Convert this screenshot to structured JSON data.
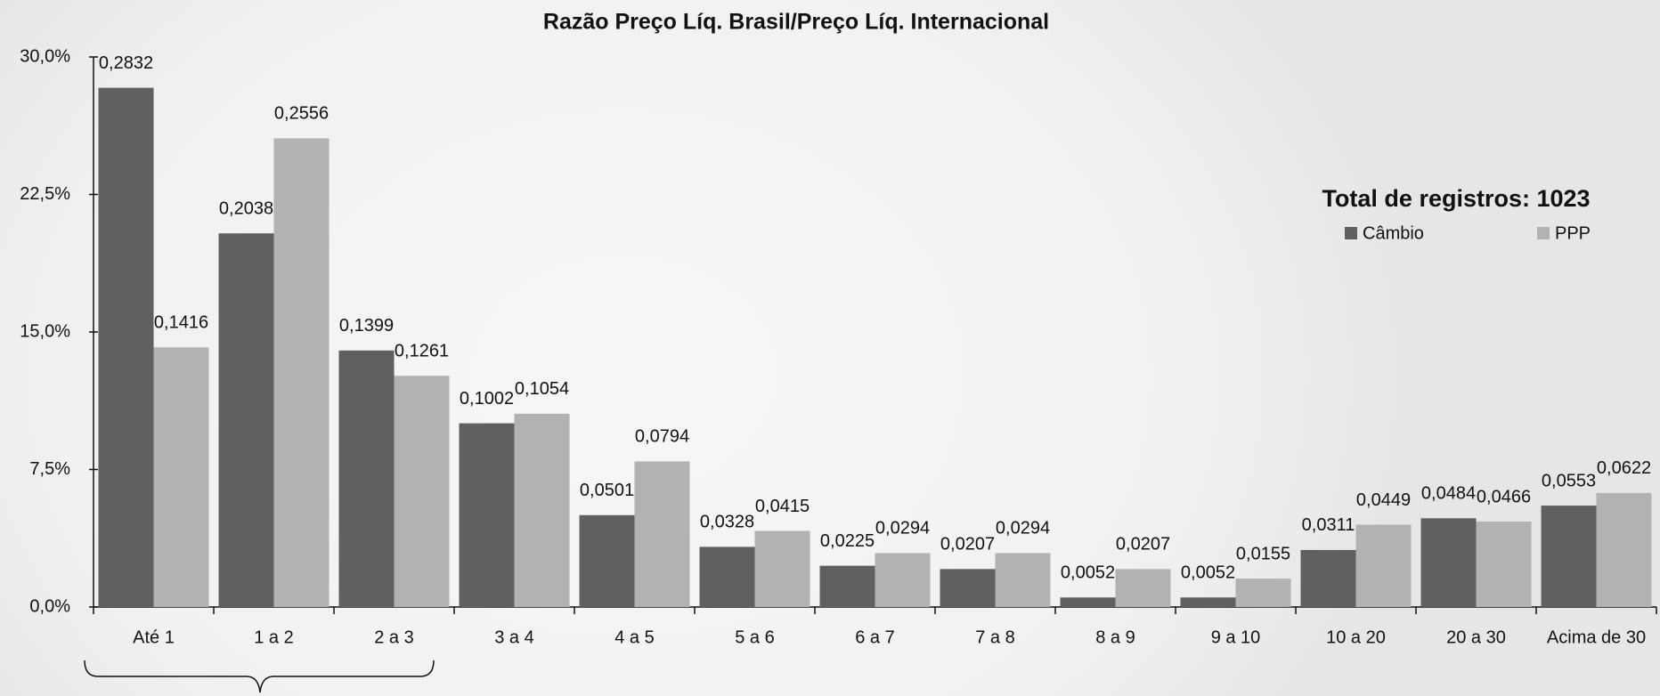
{
  "chart_data": {
    "type": "bar",
    "title": "Razão Preço Líq. Brasil/Preço Líq. Internacional",
    "annotation": "Total de registros: 1023",
    "categories": [
      "Até 1",
      "1 a 2",
      "2 a 3",
      "3 a 4",
      "4 a 5",
      "5 a 6",
      "6 a 7",
      "7 a 8",
      "8 a 9",
      "9 a 10",
      "10 a 20",
      "20 a 30",
      "Acima de 30"
    ],
    "series": [
      {
        "name": "Câmbio",
        "color": "#606060",
        "values": [
          28.32,
          20.38,
          13.99,
          10.02,
          5.01,
          3.28,
          2.25,
          2.07,
          0.52,
          0.52,
          3.11,
          4.84,
          5.53
        ],
        "value_labels": [
          "0,2832",
          "0,2038",
          "0,1399",
          "0,1002",
          "0,0501",
          "0,0328",
          "0,0225",
          "0,0207",
          "0,0052",
          "0,0052",
          "0,0311",
          "0,0484",
          "0,0553"
        ]
      },
      {
        "name": "PPP",
        "color": "#b2b2b2",
        "values": [
          14.16,
          25.56,
          12.61,
          10.54,
          7.94,
          4.15,
          2.94,
          2.94,
          2.07,
          1.55,
          4.49,
          4.66,
          6.22
        ],
        "value_labels": [
          "0,1416",
          "0,2556",
          "0,1261",
          "0,1054",
          "0,0794",
          "0,0415",
          "0,0294",
          "0,0294",
          "0,0207",
          "0,0155",
          "0,0449",
          "0,0466",
          "0,0622"
        ]
      }
    ],
    "ylim": [
      0,
      30
    ],
    "yticks": [
      {
        "value": 0,
        "label": "0,0%"
      },
      {
        "value": 7.5,
        "label": "7,5%"
      },
      {
        "value": 15,
        "label": "15,0%"
      },
      {
        "value": 22.5,
        "label": "22,5%"
      },
      {
        "value": 30,
        "label": "30,0%"
      }
    ],
    "grid": false
  }
}
